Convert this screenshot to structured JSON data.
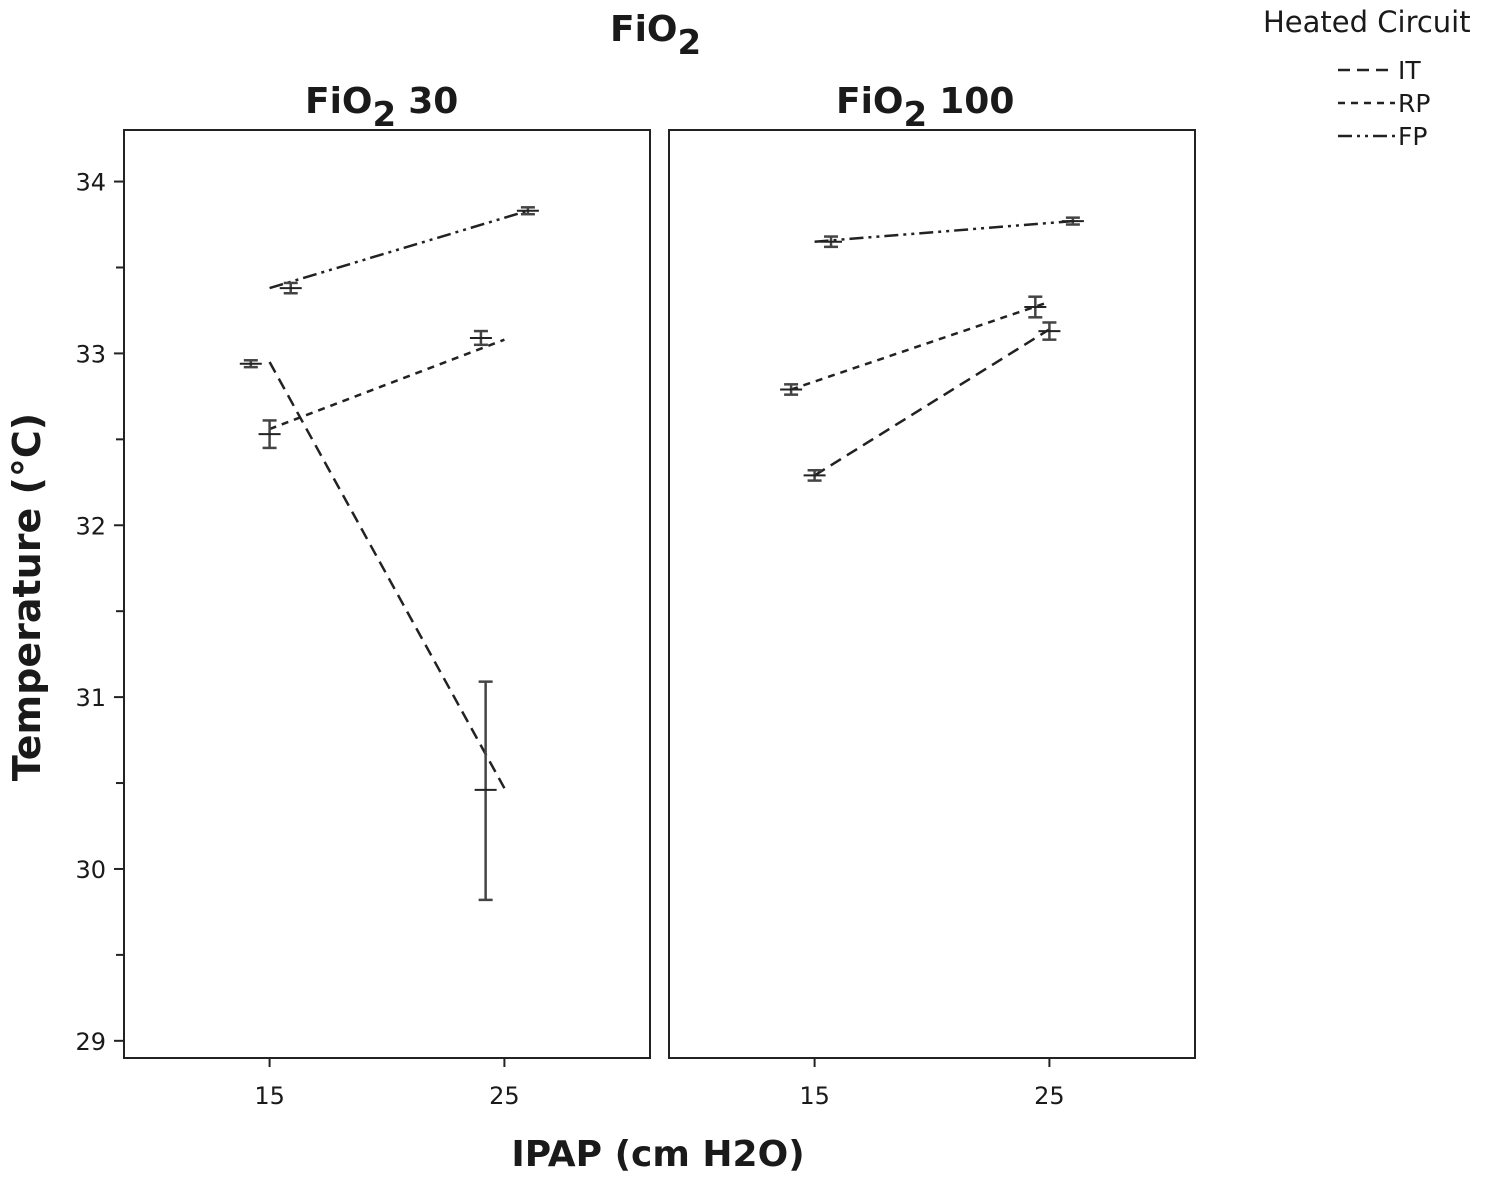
{
  "chart_data": {
    "type": "line",
    "title": "FiO",
    "title_sub": "2",
    "xlabel": "IPAP (cm H2O)",
    "ylabel": "Temperature (°C)",
    "ylim": [
      28.9,
      34.3
    ],
    "y_ticks": [
      29,
      30,
      31,
      32,
      33,
      34
    ],
    "y_minor_ticks": [
      29.5,
      30.5,
      31.5,
      32.5,
      33.5
    ],
    "x_ticks": [
      15,
      25
    ],
    "xlim": [
      8.8,
      31.2
    ],
    "legend": {
      "title": "Heated Circuit",
      "position": "top-right",
      "entries": [
        {
          "label": "IT",
          "dash": "dash"
        },
        {
          "label": "RP",
          "dash": "dot"
        },
        {
          "label": "FP",
          "dash": "dashdotdot"
        }
      ]
    },
    "panels": [
      {
        "label_main": "FiO",
        "label_sub": "2",
        "label_value": "30",
        "series": [
          {
            "name": "IT",
            "dash": "dash",
            "line_x": [
              15,
              25
            ],
            "line_y": [
              32.95,
              30.47
            ],
            "points": [
              {
                "x": 14.2,
                "y": 32.94,
                "lo": 32.92,
                "hi": 32.96
              },
              {
                "x": 24.2,
                "y": 30.46,
                "lo": 29.82,
                "hi": 31.09
              }
            ]
          },
          {
            "name": "RP",
            "dash": "dot",
            "line_x": [
              15,
              25
            ],
            "line_y": [
              32.56,
              33.08
            ],
            "points": [
              {
                "x": 15.0,
                "y": 32.53,
                "lo": 32.45,
                "hi": 32.61
              },
              {
                "x": 24.0,
                "y": 33.09,
                "lo": 33.05,
                "hi": 33.13
              }
            ]
          },
          {
            "name": "FP",
            "dash": "dashdotdot",
            "line_x": [
              15,
              26
            ],
            "line_y": [
              33.38,
              33.83
            ],
            "points": [
              {
                "x": 15.9,
                "y": 33.38,
                "lo": 33.35,
                "hi": 33.41
              },
              {
                "x": 26.0,
                "y": 33.83,
                "lo": 33.81,
                "hi": 33.85
              }
            ]
          }
        ]
      },
      {
        "label_main": "FiO",
        "label_sub": "2",
        "label_value": "100",
        "series": [
          {
            "name": "IT",
            "dash": "dash",
            "line_x": [
              15,
              25
            ],
            "line_y": [
              32.29,
              33.14
            ],
            "points": [
              {
                "x": 15.0,
                "y": 32.29,
                "lo": 32.26,
                "hi": 32.32
              },
              {
                "x": 25.0,
                "y": 33.13,
                "lo": 33.08,
                "hi": 33.18
              }
            ]
          },
          {
            "name": "RP",
            "dash": "dot",
            "line_x": [
              14,
              25
            ],
            "line_y": [
              32.79,
              33.3
            ],
            "points": [
              {
                "x": 14.0,
                "y": 32.79,
                "lo": 32.76,
                "hi": 32.82
              },
              {
                "x": 24.4,
                "y": 33.27,
                "lo": 33.21,
                "hi": 33.33
              }
            ]
          },
          {
            "name": "FP",
            "dash": "dashdotdot",
            "line_x": [
              15,
              26
            ],
            "line_y": [
              33.65,
              33.77
            ],
            "points": [
              {
                "x": 15.7,
                "y": 33.65,
                "lo": 33.62,
                "hi": 33.68
              },
              {
                "x": 26.0,
                "y": 33.77,
                "lo": 33.75,
                "hi": 33.79
              }
            ]
          }
        ]
      }
    ]
  }
}
